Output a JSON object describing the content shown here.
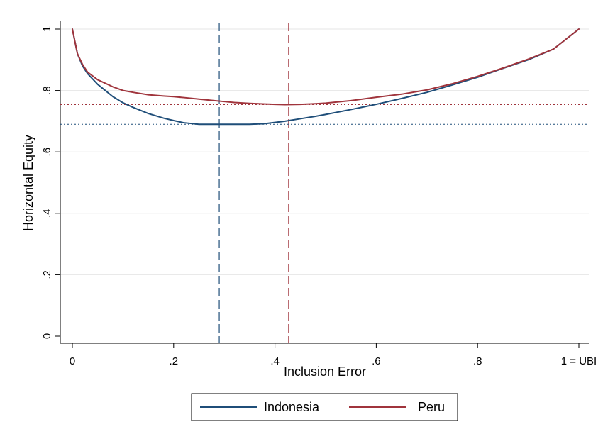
{
  "chart_data": {
    "type": "line",
    "xlabel": "Inclusion Error",
    "ylabel": "Horizontal Equity",
    "xlim": [
      0,
      1
    ],
    "ylim": [
      0,
      1
    ],
    "x_ticks": [
      {
        "value": 0,
        "label": "0"
      },
      {
        "value": 0.2,
        "label": ".2"
      },
      {
        "value": 0.4,
        "label": ".4"
      },
      {
        "value": 0.6,
        "label": ".6"
      },
      {
        "value": 0.8,
        "label": ".8"
      },
      {
        "value": 1,
        "label": "1 = UBI"
      }
    ],
    "y_ticks": [
      {
        "value": 0,
        "label": "0"
      },
      {
        "value": 0.2,
        "label": ".2"
      },
      {
        "value": 0.4,
        "label": ".4"
      },
      {
        "value": 0.6,
        "label": ".6"
      },
      {
        "value": 0.8,
        "label": ".8"
      },
      {
        "value": 1,
        "label": "1"
      }
    ],
    "grid": true,
    "legend_position": "bottom",
    "series": [
      {
        "name": "Indonesia",
        "color": "#1f4e79",
        "x": [
          0,
          0.01,
          0.02,
          0.03,
          0.05,
          0.08,
          0.1,
          0.12,
          0.15,
          0.18,
          0.2,
          0.22,
          0.25,
          0.28,
          0.3,
          0.32,
          0.35,
          0.38,
          0.4,
          0.42,
          0.45,
          0.48,
          0.5,
          0.55,
          0.6,
          0.65,
          0.7,
          0.75,
          0.8,
          0.85,
          0.9,
          0.95,
          1.0
        ],
        "y": [
          1.0,
          0.92,
          0.88,
          0.855,
          0.82,
          0.78,
          0.76,
          0.745,
          0.725,
          0.71,
          0.702,
          0.695,
          0.69,
          0.69,
          0.69,
          0.69,
          0.69,
          0.692,
          0.696,
          0.7,
          0.708,
          0.716,
          0.722,
          0.738,
          0.755,
          0.774,
          0.794,
          0.818,
          0.843,
          0.872,
          0.9,
          0.935,
          1.0
        ]
      },
      {
        "name": "Peru",
        "color": "#a0343c",
        "x": [
          0,
          0.01,
          0.02,
          0.03,
          0.05,
          0.08,
          0.1,
          0.12,
          0.15,
          0.18,
          0.2,
          0.22,
          0.25,
          0.28,
          0.3,
          0.32,
          0.35,
          0.38,
          0.4,
          0.42,
          0.45,
          0.48,
          0.5,
          0.55,
          0.6,
          0.65,
          0.7,
          0.75,
          0.8,
          0.85,
          0.9,
          0.95,
          1.0
        ],
        "y": [
          1.0,
          0.92,
          0.885,
          0.86,
          0.835,
          0.812,
          0.8,
          0.794,
          0.786,
          0.782,
          0.78,
          0.777,
          0.772,
          0.767,
          0.764,
          0.761,
          0.758,
          0.756,
          0.755,
          0.754,
          0.755,
          0.757,
          0.759,
          0.767,
          0.778,
          0.788,
          0.802,
          0.822,
          0.846,
          0.873,
          0.902,
          0.935,
          1.0
        ]
      }
    ],
    "reference_lines": [
      {
        "orientation": "vertical",
        "value": 0.29,
        "color": "#1f4e79",
        "style": "dashed"
      },
      {
        "orientation": "vertical",
        "value": 0.427,
        "color": "#a0343c",
        "style": "dashed"
      },
      {
        "orientation": "horizontal",
        "value": 0.69,
        "color": "#1f4e79",
        "style": "dotted"
      },
      {
        "orientation": "horizontal",
        "value": 0.754,
        "color": "#a0343c",
        "style": "dotted"
      }
    ]
  }
}
